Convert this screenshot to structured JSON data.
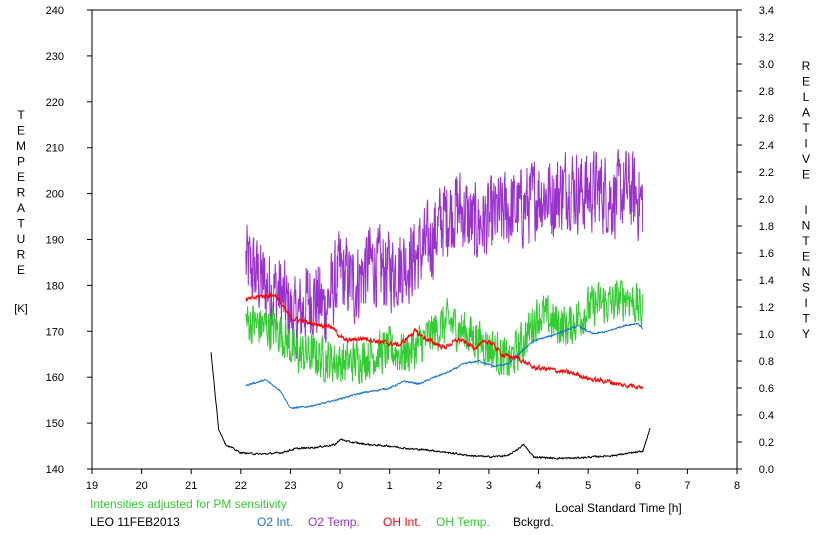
{
  "chart_data": {
    "type": "line",
    "x_axis": {
      "label": "Local Standard Time [h]",
      "ticks": [
        "19",
        "20",
        "21",
        "22",
        "23",
        "0",
        "1",
        "2",
        "3",
        "4",
        "5",
        "6",
        "7",
        "8"
      ],
      "range": [
        19,
        32
      ]
    },
    "y_left": {
      "label_letters": [
        "T",
        "E",
        "M",
        "P",
        "E",
        "R",
        "A",
        "T",
        "U",
        "R",
        "E"
      ],
      "unit": "[K]",
      "ticks": [
        "140",
        "150",
        "160",
        "170",
        "180",
        "190",
        "200",
        "210",
        "220",
        "230",
        "240"
      ],
      "range": [
        140,
        240
      ]
    },
    "y_right": {
      "label_word1": [
        "R",
        "E",
        "L",
        "A",
        "T",
        "I",
        "V",
        "E"
      ],
      "label_word2": [
        "I",
        "N",
        "T",
        "E",
        "N",
        "S",
        "I",
        "T",
        "Y"
      ],
      "ticks": [
        "0.0",
        "0.2",
        "0.4",
        "0.6",
        "0.8",
        "1.0",
        "1.2",
        "1.4",
        "1.6",
        "1.8",
        "2.0",
        "2.2",
        "2.4",
        "2.6",
        "2.8",
        "3.0",
        "3.2",
        "3.4"
      ],
      "range": [
        0,
        3.4
      ]
    },
    "note": "Intensities adjusted for PM sensitivity",
    "station": "LEO 11FEB2013",
    "grid": false,
    "legend_position": "bottom",
    "series": [
      {
        "name": "O2 Int.",
        "axis": "right",
        "color": "#1874cd",
        "noise": 0.01,
        "points": [
          [
            22.1,
            0.62
          ],
          [
            22.5,
            0.66
          ],
          [
            22.8,
            0.58
          ],
          [
            23.0,
            0.45
          ],
          [
            23.3,
            0.46
          ],
          [
            23.6,
            0.48
          ],
          [
            24.0,
            0.52
          ],
          [
            24.4,
            0.56
          ],
          [
            24.7,
            0.58
          ],
          [
            25.0,
            0.6
          ],
          [
            25.3,
            0.65
          ],
          [
            25.6,
            0.63
          ],
          [
            25.9,
            0.68
          ],
          [
            26.2,
            0.72
          ],
          [
            26.5,
            0.78
          ],
          [
            26.8,
            0.8
          ],
          [
            27.1,
            0.76
          ],
          [
            27.4,
            0.78
          ],
          [
            27.6,
            0.85
          ],
          [
            27.9,
            0.95
          ],
          [
            28.2,
            0.98
          ],
          [
            28.5,
            1.02
          ],
          [
            28.8,
            1.06
          ],
          [
            29.1,
            1.0
          ],
          [
            29.4,
            1.02
          ],
          [
            29.7,
            1.06
          ],
          [
            30.0,
            1.08
          ],
          [
            30.1,
            1.04
          ]
        ]
      },
      {
        "name": "O2 Temp.",
        "axis": "left",
        "color": "#9932cc",
        "noise": 11,
        "points": [
          [
            22.1,
            185
          ],
          [
            22.5,
            180
          ],
          [
            22.8,
            178
          ],
          [
            23.1,
            172
          ],
          [
            23.4,
            178
          ],
          [
            23.7,
            175
          ],
          [
            24.0,
            183
          ],
          [
            24.3,
            180
          ],
          [
            24.6,
            185
          ],
          [
            24.9,
            183
          ],
          [
            25.2,
            184
          ],
          [
            25.5,
            186
          ],
          [
            25.8,
            189
          ],
          [
            26.1,
            195
          ],
          [
            26.4,
            197
          ],
          [
            26.7,
            193
          ],
          [
            27.0,
            194
          ],
          [
            27.3,
            196
          ],
          [
            27.7,
            197
          ],
          [
            28.0,
            200
          ],
          [
            28.3,
            199
          ],
          [
            28.6,
            202
          ],
          [
            28.9,
            200
          ],
          [
            29.2,
            201
          ],
          [
            29.5,
            199
          ],
          [
            29.8,
            201
          ],
          [
            30.1,
            198
          ]
        ]
      },
      {
        "name": "OH Int.",
        "axis": "right",
        "color": "#ff0000",
        "noise": 0.03,
        "points": [
          [
            22.1,
            1.25
          ],
          [
            22.4,
            1.28
          ],
          [
            22.7,
            1.29
          ],
          [
            23.0,
            1.12
          ],
          [
            23.4,
            1.08
          ],
          [
            23.8,
            1.06
          ],
          [
            24.1,
            0.95
          ],
          [
            24.5,
            0.97
          ],
          [
            24.8,
            0.94
          ],
          [
            25.2,
            0.92
          ],
          [
            25.5,
            1.02
          ],
          [
            25.8,
            0.95
          ],
          [
            26.1,
            0.9
          ],
          [
            26.4,
            0.96
          ],
          [
            26.7,
            0.9
          ],
          [
            27.0,
            0.95
          ],
          [
            27.3,
            0.84
          ],
          [
            27.6,
            0.82
          ],
          [
            27.9,
            0.75
          ],
          [
            28.2,
            0.74
          ],
          [
            28.5,
            0.72
          ],
          [
            28.8,
            0.7
          ],
          [
            29.1,
            0.66
          ],
          [
            29.4,
            0.65
          ],
          [
            29.7,
            0.62
          ],
          [
            29.9,
            0.62
          ],
          [
            30.1,
            0.61
          ]
        ]
      },
      {
        "name": "OH Temp.",
        "axis": "left",
        "color": "#33cc33",
        "noise": 6,
        "points": [
          [
            22.1,
            172
          ],
          [
            22.5,
            171
          ],
          [
            22.8,
            170
          ],
          [
            23.1,
            165
          ],
          [
            23.4,
            165
          ],
          [
            23.7,
            164
          ],
          [
            24.1,
            163
          ],
          [
            24.4,
            164
          ],
          [
            24.7,
            165
          ],
          [
            25.0,
            166
          ],
          [
            25.3,
            165
          ],
          [
            25.6,
            167
          ],
          [
            25.9,
            170
          ],
          [
            26.2,
            172
          ],
          [
            26.5,
            170
          ],
          [
            26.8,
            168
          ],
          [
            27.1,
            166
          ],
          [
            27.4,
            163
          ],
          [
            27.7,
            168
          ],
          [
            28.0,
            174
          ],
          [
            28.3,
            172
          ],
          [
            28.6,
            171
          ],
          [
            28.9,
            174
          ],
          [
            29.2,
            176
          ],
          [
            29.5,
            176
          ],
          [
            29.8,
            178
          ],
          [
            30.1,
            174
          ]
        ]
      },
      {
        "name": "Bckgrd.",
        "axis": "right",
        "color": "#000000",
        "noise": 0.01,
        "points": [
          [
            21.4,
            0.86
          ],
          [
            21.55,
            0.3
          ],
          [
            21.7,
            0.18
          ],
          [
            22.0,
            0.12
          ],
          [
            22.4,
            0.11
          ],
          [
            22.8,
            0.12
          ],
          [
            23.1,
            0.15
          ],
          [
            23.5,
            0.16
          ],
          [
            23.9,
            0.18
          ],
          [
            24.0,
            0.22
          ],
          [
            24.2,
            0.2
          ],
          [
            24.6,
            0.18
          ],
          [
            25.0,
            0.17
          ],
          [
            25.4,
            0.15
          ],
          [
            25.8,
            0.14
          ],
          [
            26.2,
            0.12
          ],
          [
            26.6,
            0.1
          ],
          [
            27.0,
            0.09
          ],
          [
            27.4,
            0.1
          ],
          [
            27.7,
            0.18
          ],
          [
            27.9,
            0.09
          ],
          [
            28.3,
            0.08
          ],
          [
            28.7,
            0.08
          ],
          [
            29.1,
            0.09
          ],
          [
            29.5,
            0.1
          ],
          [
            29.9,
            0.12
          ],
          [
            30.1,
            0.13
          ],
          [
            30.25,
            0.3
          ]
        ]
      }
    ]
  }
}
